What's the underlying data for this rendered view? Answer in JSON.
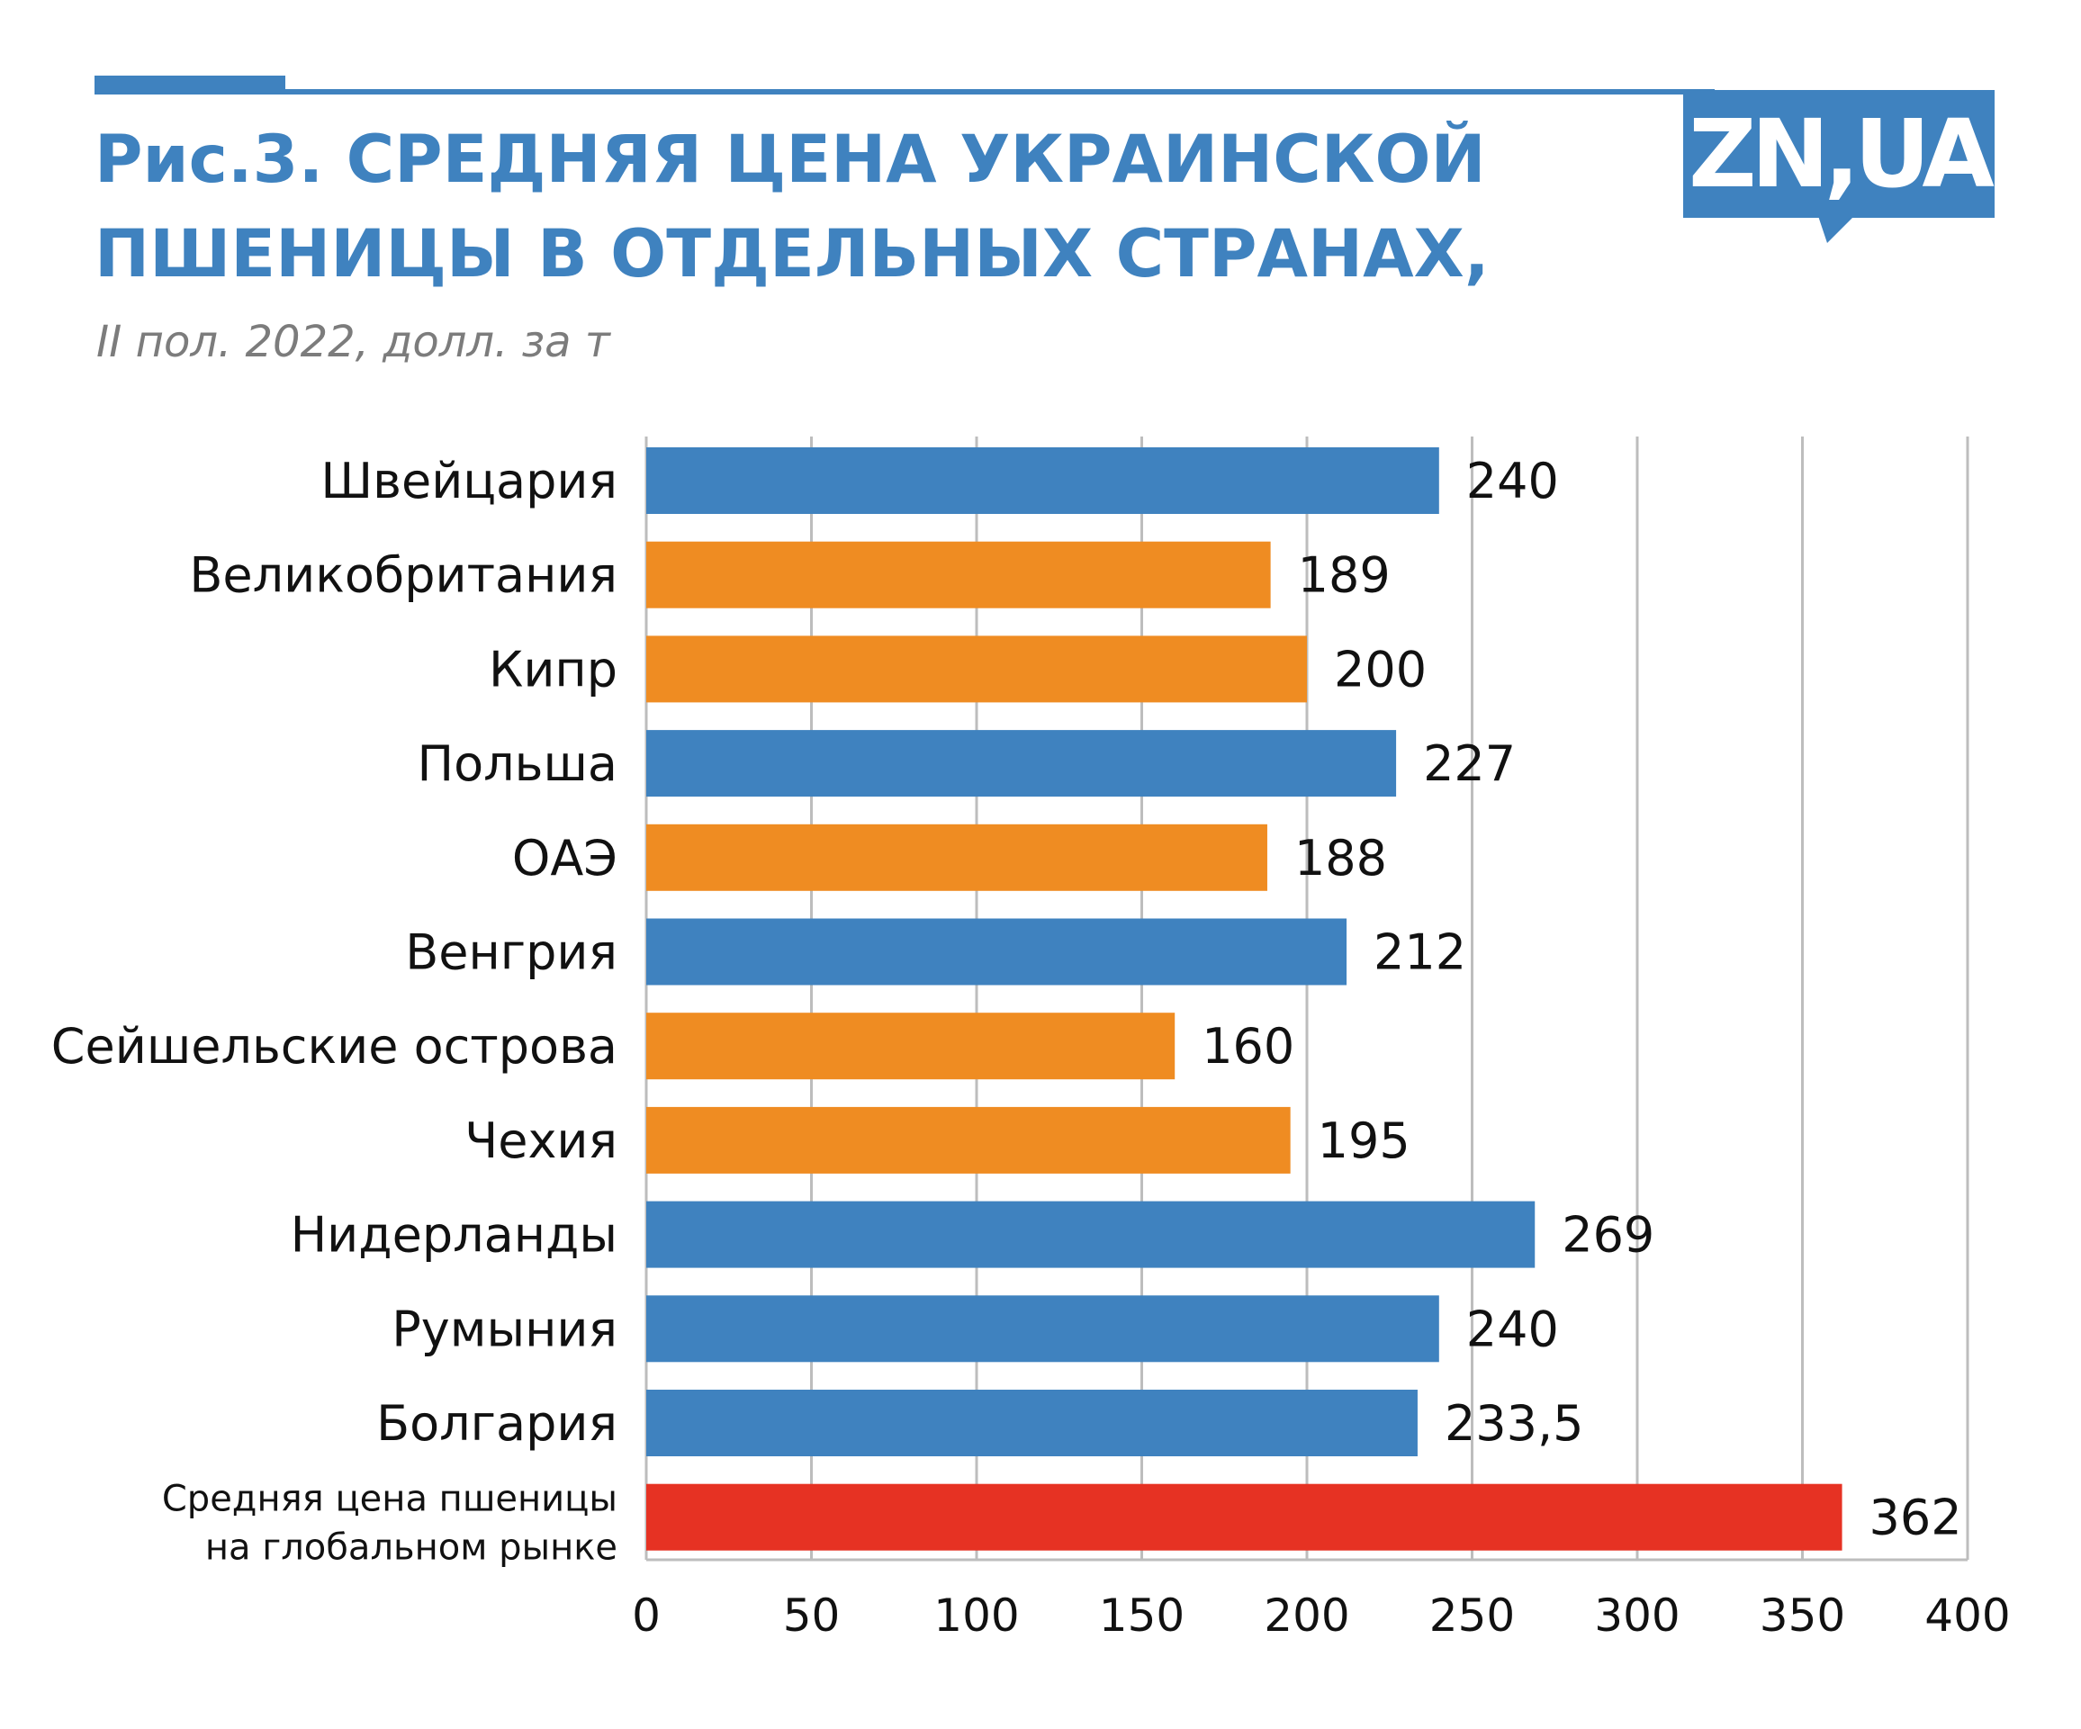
{
  "title_line1": "Рис.3. СРЕДНЯЯ ЦЕНА УКРАИНСКОЙ",
  "title_line2": "ПШЕНИЦЫ В ОТДЕЛЬНЫХ СТРАНАХ,",
  "subtitle": "II пол. 2022, долл. за т",
  "logo_text": "ZN,UA",
  "colors": {
    "accent_blue": "#3f82bf",
    "orange": "#ef8c22",
    "red": "#e63223",
    "gridline": "#bdbdbd"
  },
  "chart_data": {
    "type": "bar",
    "orientation": "horizontal",
    "categories": [
      [
        "Швейцария"
      ],
      [
        "Великобритания"
      ],
      [
        "Кипр"
      ],
      [
        "Польша"
      ],
      [
        "ОАЭ"
      ],
      [
        "Венгрия"
      ],
      [
        "Сейшельские острова"
      ],
      [
        "Чехия"
      ],
      [
        "Нидерланды"
      ],
      [
        "Румыния"
      ],
      [
        "Болгария"
      ],
      [
        "Средняя цена пшеницы",
        "на глобальном рынке"
      ]
    ],
    "values": [
      240,
      189,
      200,
      227,
      188,
      212,
      160,
      195,
      269,
      240,
      233.5,
      362
    ],
    "value_labels": [
      "240",
      "189",
      "200",
      "227",
      "188",
      "212",
      "160",
      "195",
      "269",
      "240",
      "233,5",
      "362"
    ],
    "bar_colors": [
      "blue",
      "orange",
      "orange",
      "blue",
      "orange",
      "blue",
      "orange",
      "orange",
      "blue",
      "blue",
      "blue",
      "red"
    ],
    "xlim": [
      0,
      400
    ],
    "xticks": [
      0,
      50,
      100,
      150,
      200,
      250,
      300,
      350,
      400
    ],
    "xtick_labels": [
      "0",
      "50",
      "100",
      "150",
      "200",
      "250",
      "300",
      "350",
      "400"
    ],
    "grid": "vertical",
    "legend": "none"
  }
}
